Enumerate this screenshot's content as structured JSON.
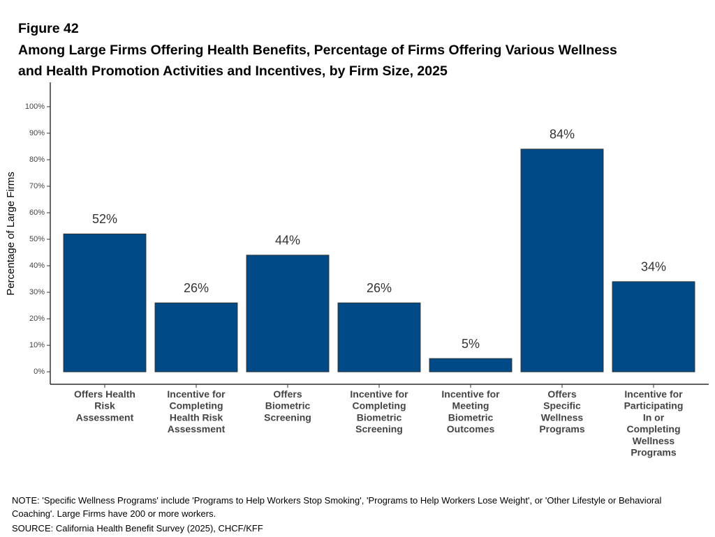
{
  "chart_data": {
    "type": "bar",
    "figure_label": "Figure 42",
    "title": "Among Large Firms Offering Health Benefits, Percentage of Firms Offering Various Wellness",
    "title_line2": "and Health Promotion Activities and Incentives, by Firm Size, 2025",
    "ylabel": "Percentage of Large Firms",
    "categories": [
      "Offers Health Risk Assessment",
      "Incentive for Completing Health Risk Assessment",
      "Offers Biometric Screening",
      "Incentive for Completing Biometric Screening",
      "Incentive for Meeting Biometric Outcomes",
      "Offers Specific Wellness Programs",
      "Incentive for Participating In or Completing Wellness Programs"
    ],
    "values": [
      52,
      26,
      44,
      26,
      5,
      84,
      34
    ],
    "value_labels": [
      "52%",
      "26%",
      "44%",
      "26%",
      "5%",
      "84%",
      "34%"
    ],
    "color": "#004b87",
    "ylim": [
      -4.7,
      109.2
    ],
    "yticks": [
      {
        "value": 0,
        "label": "0%"
      },
      {
        "value": 10,
        "label": "10%"
      },
      {
        "value": 20,
        "label": "20%"
      },
      {
        "value": 30,
        "label": "30%"
      },
      {
        "value": 40,
        "label": "40%"
      },
      {
        "value": 50,
        "label": "50%"
      },
      {
        "value": 60,
        "label": "60%"
      },
      {
        "value": 70,
        "label": "70%"
      },
      {
        "value": 80,
        "label": "80%"
      },
      {
        "value": 90,
        "label": "90%"
      },
      {
        "value": 100,
        "label": "100%"
      }
    ],
    "grid": false,
    "note": "NOTE: 'Specific Wellness Programs' include 'Programs to Help Workers Stop Smoking', 'Programs to Help Workers Lose Weight', or 'Other Lifestyle or Behavioral Coaching'. Large Firms have 200 or more workers.",
    "source": "SOURCE: California Health Benefit Survey (2025), CHCF/KFF"
  }
}
